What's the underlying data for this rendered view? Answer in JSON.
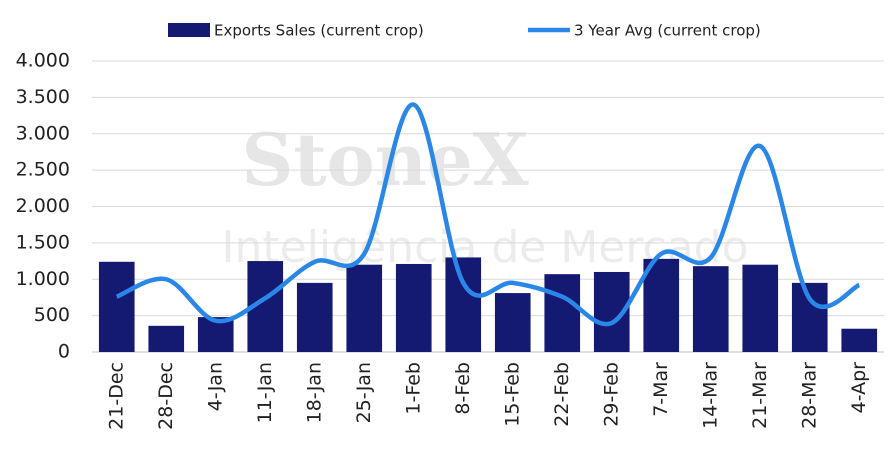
{
  "chart_data": {
    "type": "bar-line",
    "watermark": [
      "StoneX",
      "Inteligência de Mercado"
    ],
    "categories": [
      "21-Dec",
      "28-Dec",
      "4-Jan",
      "11-Jan",
      "18-Jan",
      "25-Jan",
      "1-Feb",
      "8-Feb",
      "15-Feb",
      "22-Feb",
      "29-Feb",
      "7-Mar",
      "14-Mar",
      "21-Mar",
      "28-Mar",
      "4-Apr"
    ],
    "series": [
      {
        "name": "Exports Sales (current crop)",
        "color": "#141a72",
        "type": "bar",
        "values": [
          1240,
          360,
          480,
          1250,
          950,
          1200,
          1210,
          1300,
          810,
          1070,
          1100,
          1280,
          1180,
          1200,
          950,
          320
        ]
      },
      {
        "name": "3 Year Avg (current crop)",
        "color": "#2a87e8",
        "type": "line",
        "values": [
          760,
          1000,
          430,
          740,
          1240,
          1350,
          3400,
          950,
          950,
          760,
          400,
          1350,
          1300,
          2830,
          730,
          920
        ]
      }
    ],
    "ylim": [
      0,
      4000
    ],
    "yticks": [
      0,
      500,
      {
        "value": 1000,
        "label": "1.000"
      },
      {
        "value": 1500,
        "label": "1.500"
      },
      {
        "value": 2000,
        "label": "2.000"
      },
      {
        "value": 2500,
        "label": "2.500"
      },
      {
        "value": 3000,
        "label": "3.000"
      },
      {
        "value": 3500,
        "label": "3.500"
      },
      {
        "value": 4000,
        "label": "4.000"
      }
    ],
    "grid": true
  }
}
